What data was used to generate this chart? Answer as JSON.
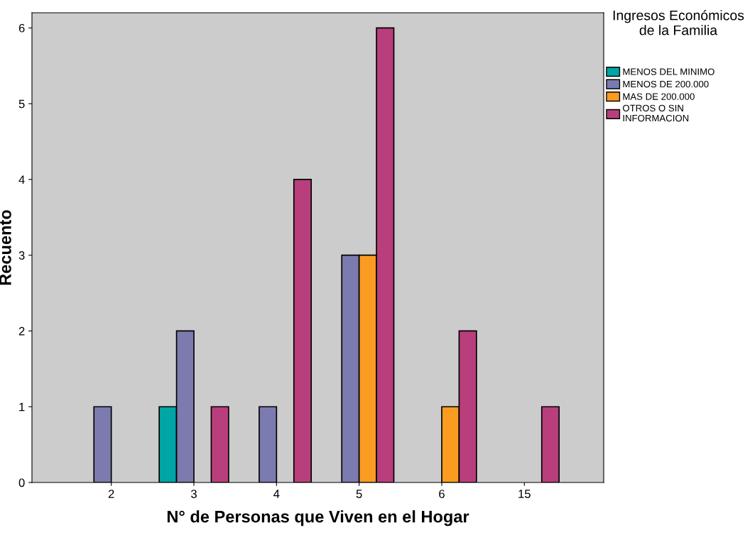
{
  "chart_data": {
    "type": "bar",
    "xlabel": "N° de Personas que Viven en el Hogar",
    "ylabel": "Recuento",
    "legend_title": "Ingresos Económicos de la Familia",
    "categories": [
      "2",
      "3",
      "4",
      "5",
      "6",
      "15"
    ],
    "series": [
      {
        "name": "MENOS DEL MINIMO",
        "color": "#00a5a5",
        "values": [
          null,
          1,
          null,
          null,
          null,
          null
        ]
      },
      {
        "name": "MENOS DE 200.000",
        "color": "#7b7baf",
        "values": [
          1,
          2,
          1,
          3,
          null,
          null
        ]
      },
      {
        "name": "MAS DE 200.000",
        "color": "#fa9c22",
        "values": [
          null,
          null,
          null,
          3,
          1,
          null
        ]
      },
      {
        "name": "OTROS O SIN INFORMACION",
        "color": "#b83f7c",
        "values": [
          null,
          1,
          4,
          6,
          2,
          1
        ]
      }
    ],
    "ylim": [
      0,
      6.2
    ],
    "yticks": [
      0,
      1,
      2,
      3,
      4,
      5,
      6
    ],
    "grid": false,
    "legend": "top right"
  }
}
